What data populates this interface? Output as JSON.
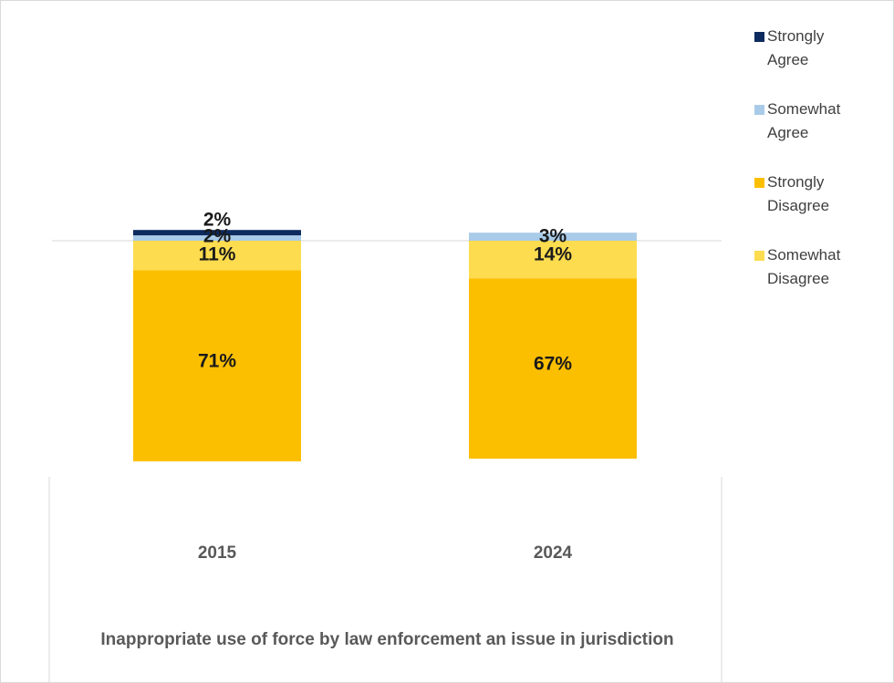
{
  "chart_data": {
    "type": "bar",
    "stacked": true,
    "categories": [
      "2015",
      "2024"
    ],
    "series": [
      {
        "name": "Strongly Agree",
        "color": "#0d2b5e",
        "values": [
          2,
          0
        ],
        "labels": [
          "2%",
          ""
        ]
      },
      {
        "name": "Somewhat Agree",
        "color": "#a9cbe8",
        "values": [
          2,
          3
        ],
        "labels": [
          "2%",
          "3%"
        ]
      },
      {
        "name": "Strongly Disagree",
        "color": "#fcbf00",
        "values": [
          71,
          67
        ],
        "labels": [
          "71%",
          "67%"
        ]
      },
      {
        "name": "Somewhat Disagree",
        "color": "#fddc4f",
        "values": [
          11,
          14
        ],
        "labels": [
          "11%",
          "14%"
        ]
      }
    ],
    "title": "",
    "xlabel": "Inappropriate use of force by law enforcement an issue in jurisdiction",
    "ylabel": "",
    "legend_position": "right",
    "grid": false
  }
}
